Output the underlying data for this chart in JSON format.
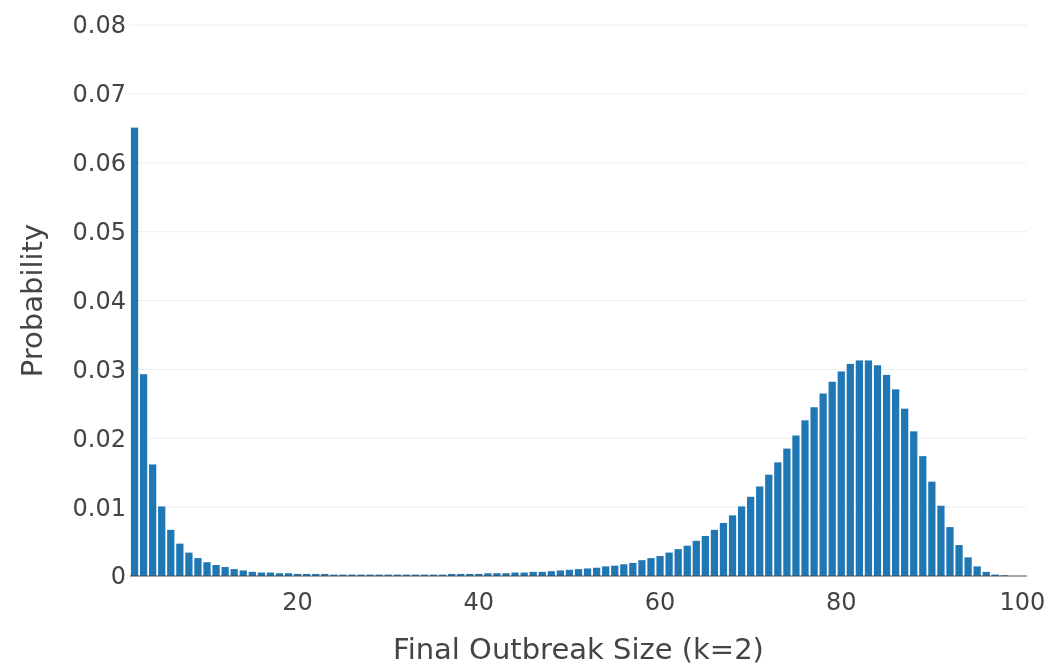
{
  "chart_data": {
    "type": "bar",
    "xlabel": "Final Outbreak Size (k=2)",
    "ylabel": "Probability",
    "color": "#1f77b4",
    "x": [
      2,
      3,
      4,
      5,
      6,
      7,
      8,
      9,
      10,
      11,
      12,
      13,
      14,
      15,
      16,
      17,
      18,
      19,
      20,
      21,
      22,
      23,
      24,
      25,
      26,
      27,
      28,
      29,
      30,
      31,
      32,
      33,
      34,
      35,
      36,
      37,
      38,
      39,
      40,
      41,
      42,
      43,
      44,
      45,
      46,
      47,
      48,
      49,
      50,
      51,
      52,
      53,
      54,
      55,
      56,
      57,
      58,
      59,
      60,
      61,
      62,
      63,
      64,
      65,
      66,
      67,
      68,
      69,
      70,
      71,
      72,
      73,
      74,
      75,
      76,
      77,
      78,
      79,
      80,
      81,
      82,
      83,
      84,
      85,
      86,
      87,
      88,
      89,
      90,
      91,
      92,
      93,
      94,
      95,
      96,
      97,
      98,
      99,
      100
    ],
    "values": [
      0.0651,
      0.0293,
      0.0162,
      0.0101,
      0.0067,
      0.0047,
      0.0034,
      0.0026,
      0.002,
      0.0016,
      0.0013,
      0.001,
      0.0008,
      0.0006,
      0.0005,
      0.0005,
      0.0004,
      0.0004,
      0.0003,
      0.0003,
      0.0003,
      0.0003,
      0.0002,
      0.0002,
      0.0002,
      0.0002,
      0.0002,
      0.0002,
      0.0002,
      0.0002,
      0.0002,
      0.0002,
      0.0002,
      0.0002,
      0.0002,
      0.0003,
      0.0003,
      0.0003,
      0.0003,
      0.0004,
      0.0004,
      0.0004,
      0.0005,
      0.0005,
      0.0006,
      0.0006,
      0.0007,
      0.0008,
      0.0009,
      0.001,
      0.0011,
      0.0012,
      0.0014,
      0.0015,
      0.0017,
      0.0019,
      0.0023,
      0.0026,
      0.0029,
      0.0034,
      0.0039,
      0.0044,
      0.0051,
      0.0058,
      0.0067,
      0.0077,
      0.0088,
      0.0101,
      0.0115,
      0.013,
      0.0147,
      0.0165,
      0.0185,
      0.0204,
      0.0226,
      0.0245,
      0.0265,
      0.0282,
      0.0297,
      0.0308,
      0.0313,
      0.0313,
      0.0306,
      0.0292,
      0.0271,
      0.0243,
      0.021,
      0.0174,
      0.0137,
      0.0102,
      0.0071,
      0.0045,
      0.0027,
      0.0014,
      0.0006,
      0.0002,
      0.0001,
      0,
      0
    ],
    "xlim": [
      1.5,
      100.5
    ],
    "xticks": [
      20,
      40,
      60,
      80,
      100
    ],
    "ylim": [
      0,
      0.08
    ],
    "yticks": [
      0,
      0.01,
      0.02,
      0.03,
      0.04,
      0.05,
      0.06,
      0.07,
      0.08
    ],
    "grid": "y"
  }
}
